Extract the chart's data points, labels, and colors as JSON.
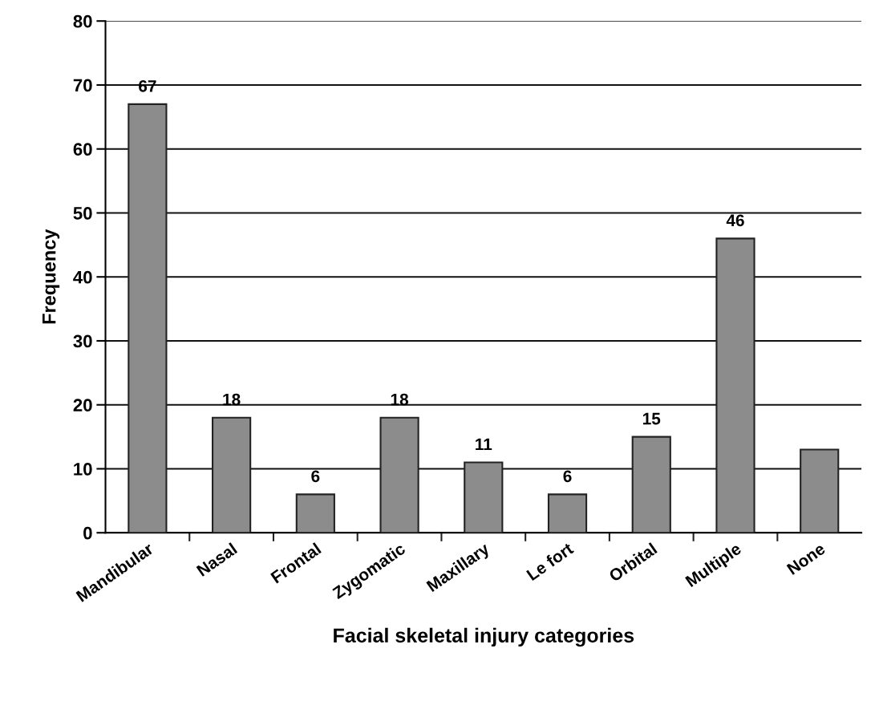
{
  "chart_data": {
    "type": "bar",
    "xlabel": "Facial skeletal injury categories",
    "ylabel": "Frequency",
    "categories": [
      "Mandibular",
      "Nasal",
      "Frontal",
      "Zygomatic",
      "Maxillary",
      "Le fort",
      "Orbital",
      "Multiple",
      "None"
    ],
    "values": [
      67,
      18,
      6,
      18,
      11,
      6,
      15,
      46,
      13
    ],
    "value_labels": [
      "67",
      "18",
      "6",
      "18",
      "11",
      "6",
      "15",
      "46",
      null
    ],
    "color": "#8c8c8c",
    "ylim": [
      0,
      80
    ],
    "yticks": [
      0,
      10,
      20,
      30,
      40,
      50,
      60,
      70,
      80
    ],
    "grid": "y",
    "legend": false
  }
}
